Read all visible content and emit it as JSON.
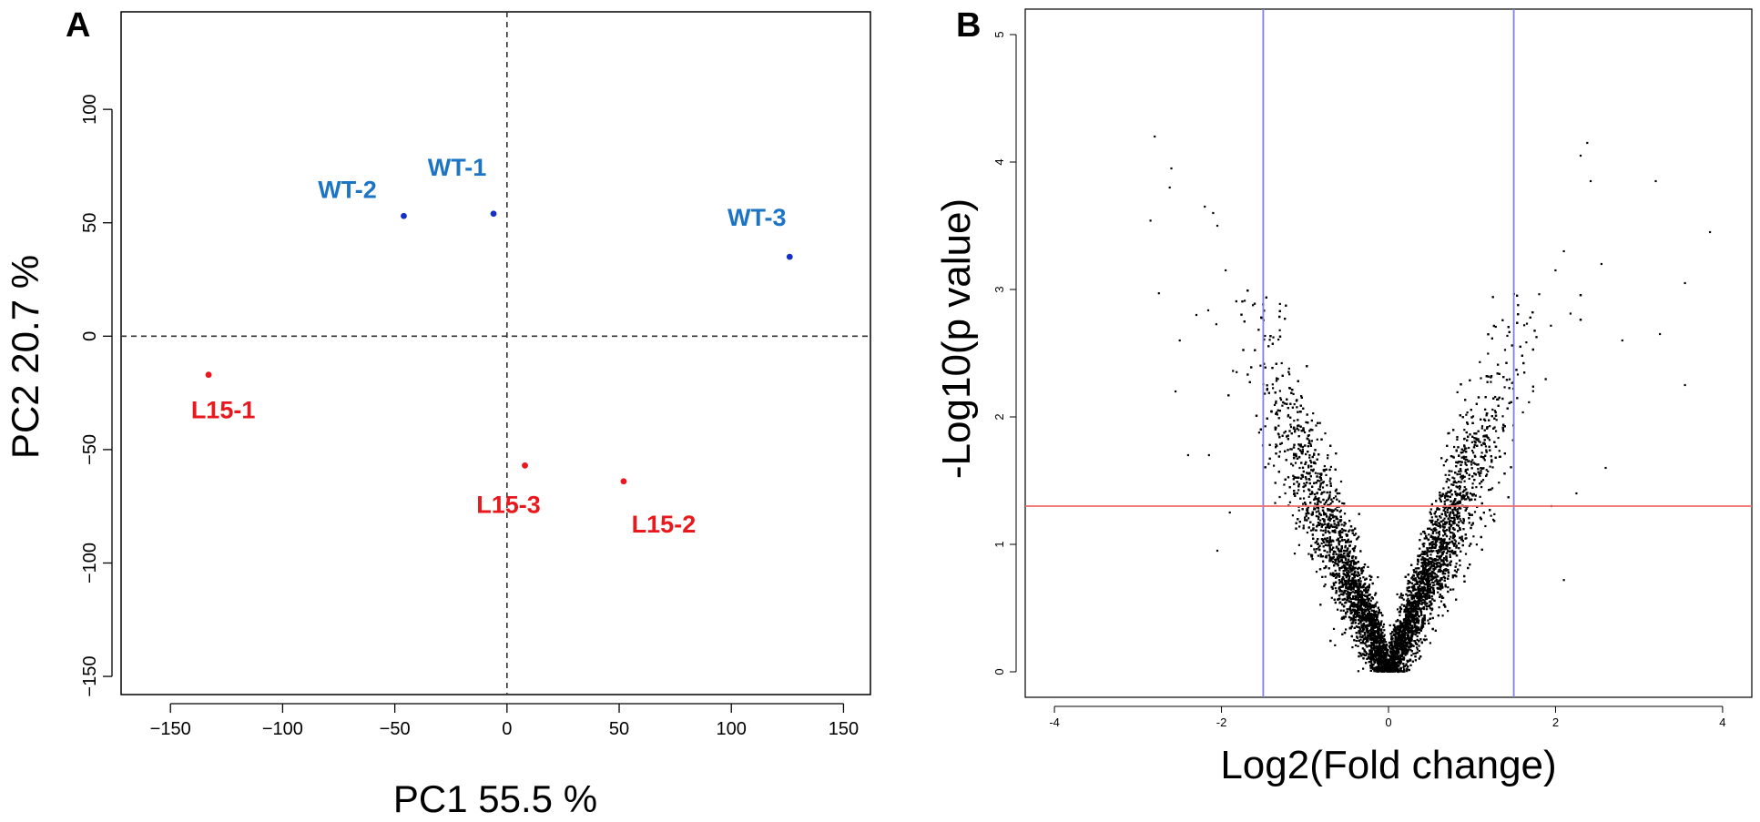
{
  "chart_data": [
    {
      "panel": "A",
      "type": "scatter",
      "xlabel": "PC1 55.5 %",
      "ylabel": "PC2 20.7 %",
      "xlim": [
        -172,
        162
      ],
      "ylim": [
        -158,
        143
      ],
      "xticks": [
        -150,
        -100,
        -50,
        0,
        50,
        100,
        150
      ],
      "yticks": [
        -150,
        -100,
        -50,
        0,
        50,
        100
      ],
      "xtick_labels": [
        "−150",
        "−100",
        "−50",
        "0",
        "50",
        "100",
        "150"
      ],
      "ytick_labels": [
        "−150",
        "−100",
        "−50",
        "0",
        "50",
        "100"
      ],
      "reference_lines": {
        "x": 0,
        "y": 0,
        "style": "dashed"
      },
      "series": [
        {
          "name": "WT",
          "color": "#1530c8",
          "label_color": "#1c74c4",
          "points": [
            {
              "label": "WT-1",
              "x": -6,
              "y": 54
            },
            {
              "label": "WT-2",
              "x": -46,
              "y": 53
            },
            {
              "label": "WT-3",
              "x": 126,
              "y": 35
            }
          ]
        },
        {
          "name": "L15",
          "color": "#e8181c",
          "label_color": "#e8181c",
          "points": [
            {
              "label": "L15-1",
              "x": -133,
              "y": -17
            },
            {
              "label": "L15-2",
              "x": 52,
              "y": -64
            },
            {
              "label": "L15-3",
              "x": 8,
              "y": -57
            }
          ]
        }
      ]
    },
    {
      "panel": "B",
      "type": "scatter",
      "subtype": "volcano",
      "xlabel": "Log2(Fold change)",
      "ylabel": "-Log10(p value)",
      "xlim": [
        -4.35,
        4.35
      ],
      "ylim": [
        -0.2,
        5.2
      ],
      "xticks": [
        -4,
        -2,
        0,
        2,
        4
      ],
      "yticks": [
        0,
        1,
        2,
        3,
        4,
        5
      ],
      "xtick_labels": [
        "-4",
        "-2",
        "0",
        "2",
        "4"
      ],
      "ytick_labels": [
        "0",
        "1",
        "2",
        "3",
        "4",
        "5"
      ],
      "vlines": [
        -1.5,
        1.5
      ],
      "vline_color": "#7f7fe6",
      "hline": 1.3,
      "hline_color": "#f06a6a",
      "point_color": "#000000",
      "point_count": 9000,
      "outliers": [
        [
          -2.85,
          3.54
        ],
        [
          -2.8,
          4.2
        ],
        [
          -2.62,
          3.8
        ],
        [
          -2.6,
          3.95
        ],
        [
          -2.2,
          3.65
        ],
        [
          -2.1,
          3.6
        ],
        [
          -2.05,
          3.5
        ],
        [
          -2.75,
          2.97
        ],
        [
          -2.5,
          2.6
        ],
        [
          -2.3,
          2.8
        ],
        [
          -2.55,
          2.2
        ],
        [
          -2.4,
          1.7
        ],
        [
          -1.95,
          3.15
        ],
        [
          -1.9,
          1.25
        ],
        [
          -2.15,
          1.7
        ],
        [
          -2.05,
          0.95
        ],
        [
          2.38,
          4.15
        ],
        [
          2.3,
          4.05
        ],
        [
          2.42,
          3.85
        ],
        [
          3.2,
          3.85
        ],
        [
          3.85,
          3.45
        ],
        [
          3.55,
          3.05
        ],
        [
          3.25,
          2.65
        ],
        [
          3.55,
          2.25
        ],
        [
          2.8,
          2.6
        ],
        [
          2.55,
          3.2
        ],
        [
          2.1,
          3.3
        ],
        [
          2.0,
          3.15
        ],
        [
          2.6,
          1.6
        ],
        [
          2.25,
          1.4
        ],
        [
          2.1,
          0.72
        ],
        [
          1.95,
          1.3
        ]
      ]
    }
  ]
}
